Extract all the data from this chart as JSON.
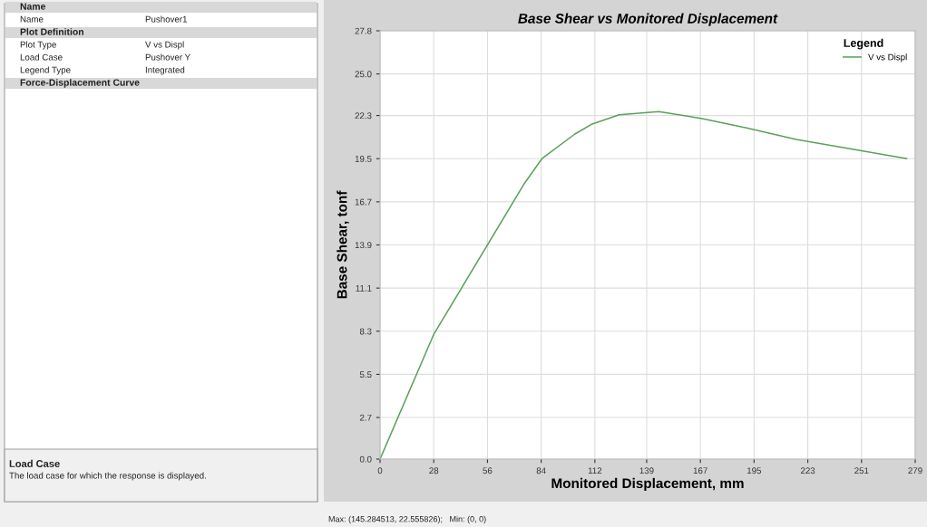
{
  "chart_data": {
    "type": "line",
    "title": "Base Shear vs Monitored Displacement",
    "xlabel": "Monitored Displacement, mm",
    "ylabel": "Base Shear, tonf",
    "legend_title": "Legend",
    "legend": "top right",
    "grid": true,
    "series": [
      {
        "name": "V vs Displ",
        "color": "#5aa05a",
        "x": [
          0,
          28,
          75.3,
          84.4,
          101.6,
          110.6,
          124.7,
          145.3,
          168,
          191,
          217,
          274.5
        ],
        "values": [
          0,
          8.1,
          17.9,
          19.5,
          21.1,
          21.75,
          22.35,
          22.56,
          22.1,
          21.5,
          20.75,
          19.5
        ]
      }
    ],
    "xlim": [
      0,
      279
    ],
    "xticks": [
      0,
      28,
      56,
      84,
      112,
      139,
      167,
      195,
      223,
      251,
      279
    ],
    "ylim": [
      0,
      27.8
    ],
    "yticks": [
      {
        "value": 0,
        "label": "0.0"
      },
      2.7,
      5.5,
      8.3,
      11.1,
      13.9,
      16.7,
      19.5,
      22.3,
      {
        "value": 25,
        "label": "25.0"
      },
      27.8
    ],
    "annotations": [
      "Name",
      "Name",
      "Pushover1",
      "Plot Definition",
      "Plot Type",
      "V vs Displ",
      "Load Case",
      "Pushover Y",
      "Legend Type",
      "Integrated",
      "Force-Displacement Curve",
      "Load Case",
      "The load case for which the response is displayed.",
      "Max: (145.284513, 22.555826);   Min: (0, 0)"
    ]
  }
}
